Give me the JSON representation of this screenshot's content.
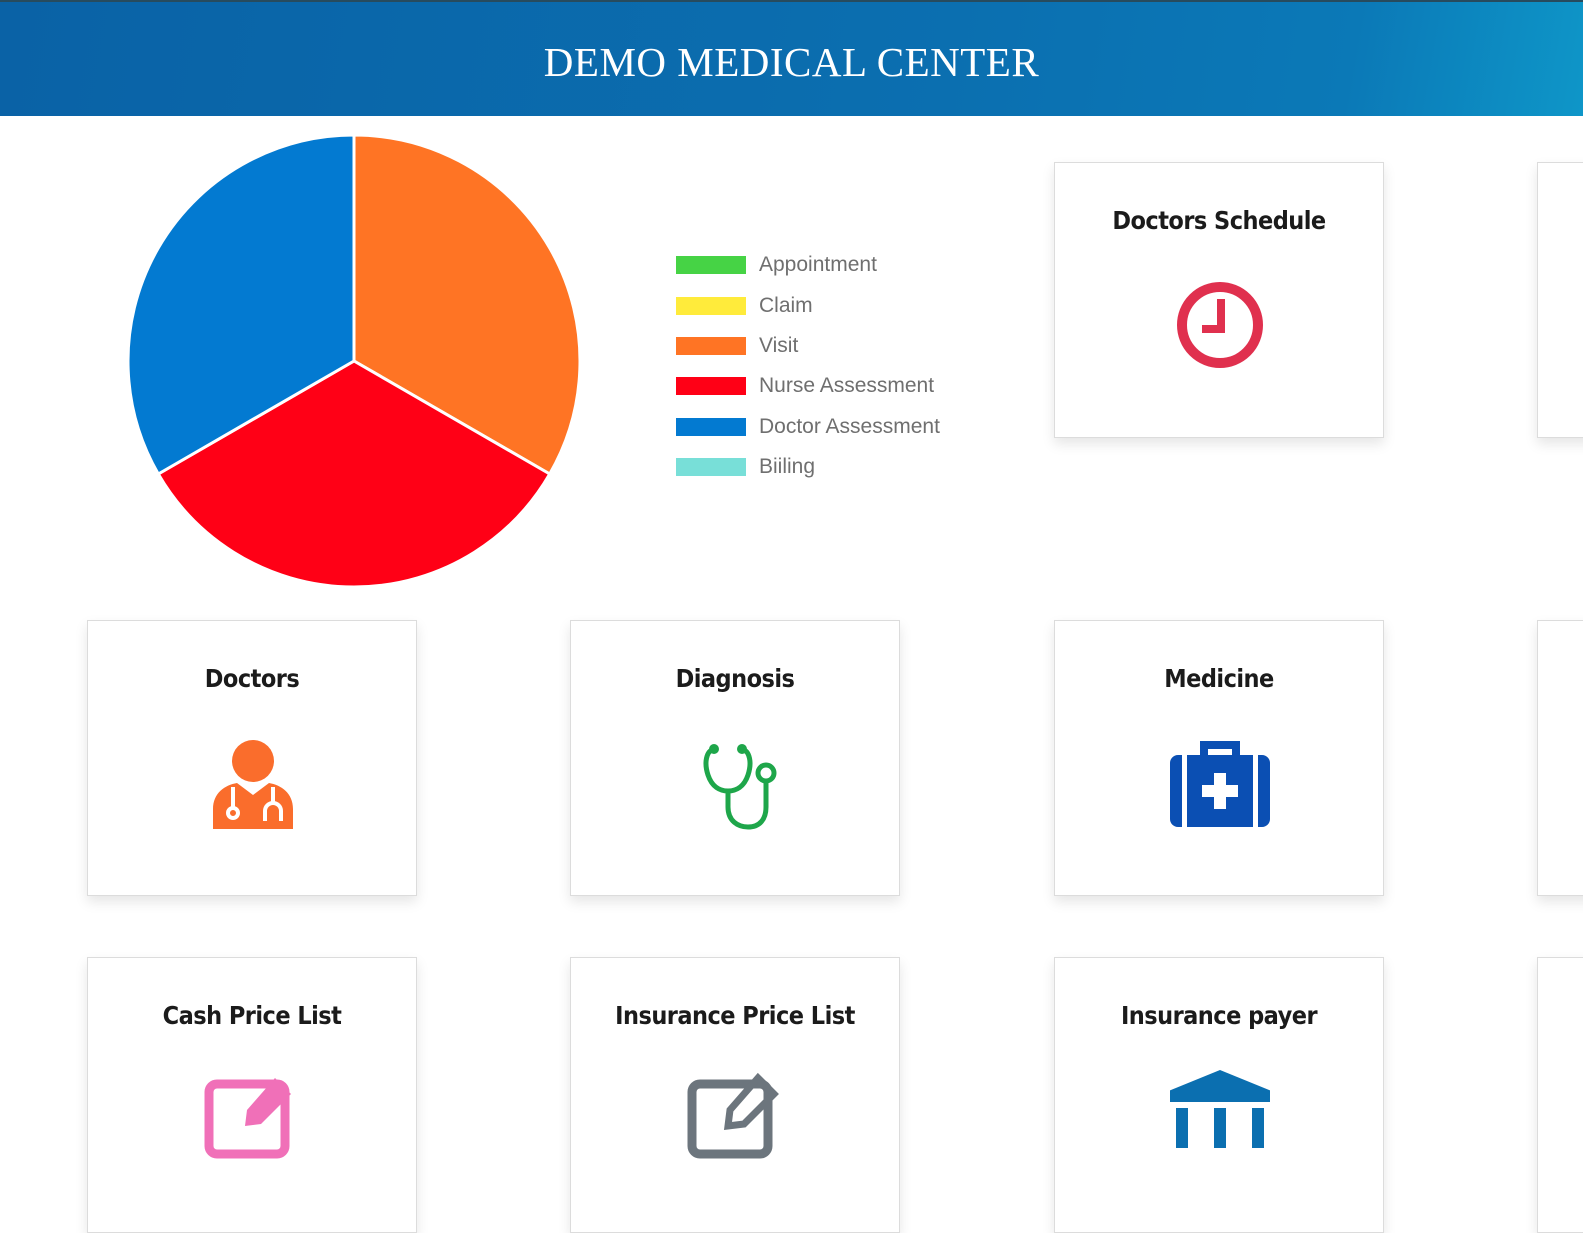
{
  "header": {
    "title": "DEMO MEDICAL CENTER"
  },
  "chart_data": {
    "type": "pie",
    "categories": [
      "Appointment",
      "Claim",
      "Visit",
      "Nurse Assessment",
      "Doctor Assessment",
      "Biiling"
    ],
    "values": [
      0,
      0,
      1,
      1,
      1,
      0
    ],
    "colors": [
      "#46d345",
      "#ffeb3b",
      "#ff7424",
      "#ff0016",
      "#037ad1",
      "#78dfd8"
    ],
    "legend_position": "right"
  },
  "cards": {
    "doctors_schedule": {
      "title": "Doctors Schedule",
      "icon": "clock-icon",
      "color": "#e0304e"
    },
    "doctors": {
      "title": "Doctors",
      "icon": "doctor-icon",
      "color": "#fa6d2c"
    },
    "diagnosis": {
      "title": "Diagnosis",
      "icon": "stethoscope-icon",
      "color": "#1ea64a"
    },
    "medicine": {
      "title": "Medicine",
      "icon": "medical-kit-icon",
      "color": "#0b4fb3"
    },
    "cash_price_list": {
      "title": "Cash Price List",
      "icon": "edit-icon",
      "color": "#f070b8"
    },
    "insurance_price_list": {
      "title": "Insurance Price List",
      "icon": "edit-icon",
      "color": "#6c757d"
    },
    "insurance_payer": {
      "title": "Insurance payer",
      "icon": "institution-icon",
      "color": "#0b6fb0"
    }
  }
}
